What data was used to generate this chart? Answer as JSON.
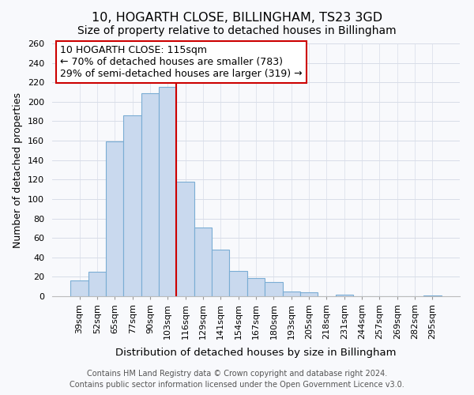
{
  "title": "10, HOGARTH CLOSE, BILLINGHAM, TS23 3GD",
  "subtitle": "Size of property relative to detached houses in Billingham",
  "xlabel": "Distribution of detached houses by size in Billingham",
  "ylabel": "Number of detached properties",
  "bar_labels": [
    "39sqm",
    "52sqm",
    "65sqm",
    "77sqm",
    "90sqm",
    "103sqm",
    "116sqm",
    "129sqm",
    "141sqm",
    "154sqm",
    "167sqm",
    "180sqm",
    "193sqm",
    "205sqm",
    "218sqm",
    "231sqm",
    "244sqm",
    "257sqm",
    "269sqm",
    "282sqm",
    "295sqm"
  ],
  "bar_values": [
    16,
    25,
    159,
    186,
    209,
    215,
    118,
    71,
    48,
    26,
    19,
    15,
    5,
    4,
    0,
    2,
    0,
    0,
    0,
    0,
    1
  ],
  "bar_color": "#c9d9ee",
  "bar_edge_color": "#7aadd4",
  "vline_color": "#cc0000",
  "ylim": [
    0,
    260
  ],
  "yticks": [
    0,
    20,
    40,
    60,
    80,
    100,
    120,
    140,
    160,
    180,
    200,
    220,
    240,
    260
  ],
  "annotation_title": "10 HOGARTH CLOSE: 115sqm",
  "annotation_line1": "← 70% of detached houses are smaller (783)",
  "annotation_line2": "29% of semi-detached houses are larger (319) →",
  "annotation_box_color": "#ffffff",
  "annotation_box_edge": "#cc0000",
  "footer1": "Contains HM Land Registry data © Crown copyright and database right 2024.",
  "footer2": "Contains public sector information licensed under the Open Government Licence v3.0.",
  "title_fontsize": 11.5,
  "subtitle_fontsize": 10,
  "xlabel_fontsize": 9.5,
  "ylabel_fontsize": 9,
  "tick_fontsize": 8,
  "footer_fontsize": 7,
  "annotation_fontsize": 9,
  "grid_color": "#d8dde8",
  "background_color": "#f8f9fc"
}
